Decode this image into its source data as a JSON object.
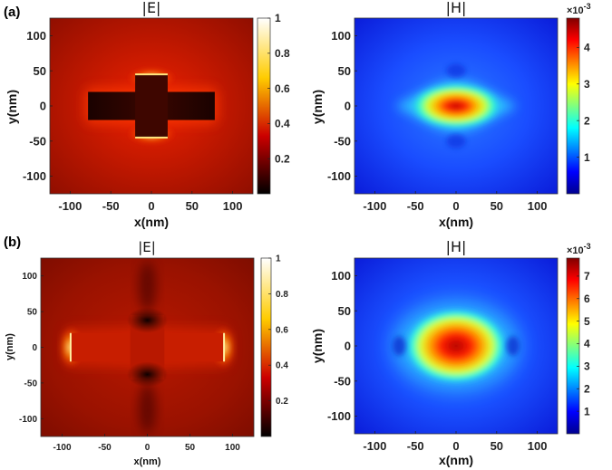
{
  "chart_data": [
    {
      "type": "heatmap",
      "panel": "(a)",
      "title": "|E|",
      "colormap": "hot",
      "xlabel": "x(nm)",
      "ylabel": "y(nm)",
      "xlim": [
        -125,
        125
      ],
      "ylim": [
        -125,
        125
      ],
      "xticks": [
        -100,
        -50,
        0,
        50,
        100
      ],
      "yticks": [
        -100,
        -50,
        0,
        50,
        100
      ],
      "colorbar": {
        "min": 0,
        "max": 1,
        "ticks": [
          0.2,
          0.4,
          0.6,
          0.8,
          1
        ],
        "exponent": ""
      }
    },
    {
      "type": "heatmap",
      "panel": "",
      "title": "|H|",
      "colormap": "jet",
      "xlabel": "x(nm)",
      "ylabel": "y(nm)",
      "xlim": [
        -125,
        125
      ],
      "ylim": [
        -125,
        125
      ],
      "xticks": [
        -100,
        -50,
        0,
        50,
        100
      ],
      "yticks": [
        -100,
        -50,
        0,
        50,
        100
      ],
      "colorbar": {
        "min": 0,
        "max": 4.8,
        "ticks": [
          1,
          2,
          3,
          4
        ],
        "exponent": "×10-3"
      }
    },
    {
      "type": "heatmap",
      "panel": "(b)",
      "title": "|E|",
      "colormap": "hot",
      "xlabel": "x(nm)",
      "ylabel": "y(nm)",
      "xlim": [
        -125,
        125
      ],
      "ylim": [
        -125,
        125
      ],
      "xticks": [
        -100,
        -50,
        0,
        50,
        100
      ],
      "yticks": [
        -100,
        -50,
        0,
        50,
        100
      ],
      "colorbar": {
        "min": 0,
        "max": 1,
        "ticks": [
          0.2,
          0.4,
          0.6,
          0.8,
          1
        ],
        "exponent": ""
      }
    },
    {
      "type": "heatmap",
      "panel": "",
      "title": "|H|",
      "colormap": "jet",
      "xlabel": "x(nm)",
      "ylabel": "y(nm)",
      "xlim": [
        -125,
        125
      ],
      "ylim": [
        -125,
        125
      ],
      "xticks": [
        -100,
        -50,
        0,
        50,
        100
      ],
      "yticks": [
        -100,
        -50,
        0,
        50,
        100
      ],
      "colorbar": {
        "min": 0,
        "max": 7.8,
        "ticks": [
          1,
          2,
          3,
          4,
          5,
          6,
          7
        ],
        "exponent": "×10-3"
      }
    }
  ]
}
